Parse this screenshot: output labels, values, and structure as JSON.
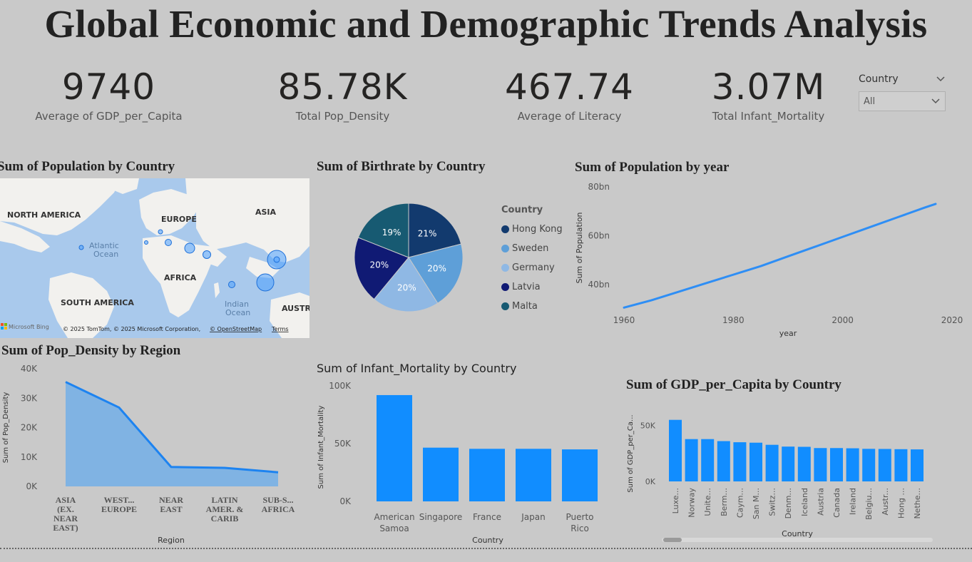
{
  "dashboard": {
    "title": "Global Economic and Demographic Trends Analysis"
  },
  "kpis": [
    {
      "value": "9740",
      "label": "Average of GDP_per_Capita"
    },
    {
      "value": "85.78K",
      "label": "Total Pop_Density"
    },
    {
      "value": "467.74",
      "label": "Average of Literacy"
    },
    {
      "value": "3.07M",
      "label": "Total Infant_Mortality"
    }
  ],
  "slicer": {
    "label": "Country",
    "selected": "All"
  },
  "map": {
    "title": "Sum of Population by Country",
    "labels": {
      "north_america": "NORTH AMERICA",
      "europe": "EUROPE",
      "asia": "ASIA",
      "africa": "AFRICA",
      "south_america": "SOUTH AMERICA",
      "atlantic": "Atlantic",
      "ocean": "Ocean",
      "indian": "Indian",
      "ocean2": "Ocean",
      "australia": "AUSTR"
    },
    "bing": "Microsoft Bing",
    "copyright": "© 2025 TomTom, © 2025 Microsoft Corporation,",
    "osm": "© OpenStreetMap",
    "terms": "Terms",
    "accent": "#4a9eff"
  },
  "pie": {
    "title": "Sum of Birthrate by Country",
    "legend_title": "Country",
    "slices": [
      {
        "name": "Hong Kong",
        "pct": 21,
        "label": "21%",
        "color": "#123a6e"
      },
      {
        "name": "Sweden",
        "pct": 20,
        "label": "20%",
        "color": "#5e9fd8"
      },
      {
        "name": "Germany",
        "pct": 20,
        "label": "20%",
        "color": "#8fb8e4"
      },
      {
        "name": "Latvia",
        "pct": 20,
        "label": "20%",
        "color": "#101a74"
      },
      {
        "name": "Malta",
        "pct": 19,
        "label": "19%",
        "color": "#175a72"
      }
    ]
  },
  "line": {
    "title": "Sum of Population by year",
    "xlabel": "year",
    "ylabel": "Sum of Population",
    "yticks": [
      "80bn",
      "60bn",
      "40bn"
    ],
    "xticks": [
      "1960",
      "1980",
      "2000",
      "2020"
    ],
    "color": "#2e8ef5"
  },
  "area": {
    "title": "Sum of Pop_Density by Region",
    "xlabel": "Region",
    "ylabel": "Sum of Pop_Density",
    "yticks": [
      "40K",
      "30K",
      "20K",
      "10K",
      "0K"
    ],
    "color": "#1d83f0",
    "fill": "#80b3e3"
  },
  "infant": {
    "title": "Sum of Infant_Mortality by Country",
    "xlabel": "Country",
    "ylabel": "Sum of Infant_Mortality",
    "yticks": [
      "100K",
      "50K",
      "0K"
    ],
    "color": "#118dff"
  },
  "gdp": {
    "title": "Sum of GDP_per_Capita by Country",
    "xlabel": "Country",
    "ylabel": "Sum of GDP_per_Ca...",
    "yticks": [
      "50K",
      "0K"
    ],
    "color": "#118dff"
  },
  "chart_data": [
    {
      "type": "pie",
      "title": "Sum of Birthrate by Country",
      "categories": [
        "Hong Kong",
        "Sweden",
        "Germany",
        "Latvia",
        "Malta"
      ],
      "values": [
        21,
        20,
        20,
        20,
        19
      ]
    },
    {
      "type": "line",
      "title": "Sum of Population by year",
      "xlabel": "year",
      "ylabel": "Sum of Population",
      "x": [
        1960,
        1965,
        1970,
        1975,
        1980,
        1985,
        1990,
        1995,
        2000,
        2005,
        2010,
        2015,
        2017
      ],
      "values": [
        30.5,
        33.5,
        37.0,
        40.5,
        44.0,
        47.5,
        51.5,
        55.5,
        59.5,
        63.5,
        67.5,
        71.5,
        73.0
      ],
      "xlim": [
        1960,
        2020
      ],
      "ylim": [
        30,
        80
      ]
    },
    {
      "type": "area",
      "title": "Sum of Pop_Density by Region",
      "xlabel": "Region",
      "ylabel": "Sum of Pop_Density",
      "categories": [
        "ASIA (EX. NEAR EAST)",
        "WEST... EUROPE",
        "NEAR EAST",
        "LATIN AMER. & CARIB",
        "SUB-S... AFRICA"
      ],
      "categories_lines": [
        [
          "ASIA",
          "(EX.",
          "NEAR",
          "EAST)"
        ],
        [
          "WEST...",
          "EUROPE"
        ],
        [
          "NEAR",
          "EAST"
        ],
        [
          "LATIN",
          "AMER. &",
          "CARIB"
        ],
        [
          "SUB-S...",
          "AFRICA"
        ]
      ],
      "values": [
        35500,
        26800,
        6600,
        6300,
        4800
      ],
      "ylim": [
        0,
        40000
      ]
    },
    {
      "type": "bar",
      "title": "Sum of Infant_Mortality by Country",
      "xlabel": "Country",
      "ylabel": "Sum of Infant_Mortality",
      "categories": [
        "American Samoa",
        "Singapore",
        "France",
        "Japan",
        "Puerto Rico"
      ],
      "categories_lines": [
        [
          "American",
          "Samoa"
        ],
        [
          "Singapore"
        ],
        [
          "France"
        ],
        [
          "Japan"
        ],
        [
          "Puerto",
          "Rico"
        ]
      ],
      "values": [
        92000,
        46500,
        45500,
        45500,
        45000
      ],
      "ylim": [
        0,
        100000
      ]
    },
    {
      "type": "bar",
      "title": "Sum of GDP_per_Capita by Country",
      "xlabel": "Country",
      "ylabel": "Sum of GDP_per_Ca...",
      "categories": [
        "Luxe...",
        "Norway",
        "Unite...",
        "Berm...",
        "Caym...",
        "San M...",
        "Switz...",
        "Denm...",
        "Iceland",
        "Austria",
        "Canada",
        "Ireland",
        "Belgiu...",
        "Austr...",
        "Hong ...",
        "Nethe..."
      ],
      "values": [
        55000,
        37800,
        37800,
        36000,
        35000,
        34600,
        32700,
        31100,
        30900,
        29800,
        29800,
        29600,
        29100,
        29000,
        28800,
        28600
      ],
      "ylim": [
        0,
        65000
      ]
    }
  ]
}
